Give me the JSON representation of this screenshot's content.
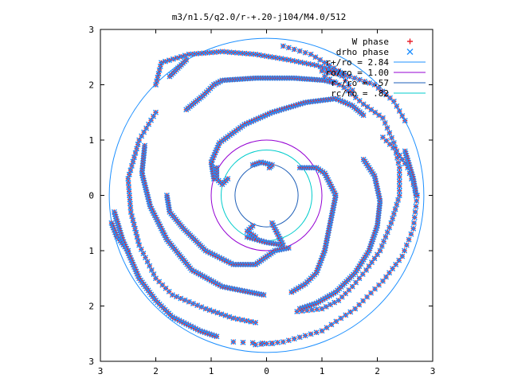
{
  "chart_data": {
    "type": "scatter",
    "title": "m3/n1.5/q2.0/r-+.20-j104/M4.0/512",
    "xlabel": "",
    "ylabel": "",
    "xlim": [
      -3,
      3
    ],
    "ylim": [
      -3,
      3
    ],
    "xticks": [
      {
        "value": -3,
        "label": "3"
      },
      {
        "value": -2,
        "label": "2"
      },
      {
        "value": -1,
        "label": "1"
      },
      {
        "value": 0,
        "label": "0"
      },
      {
        "value": 1,
        "label": "1"
      },
      {
        "value": 2,
        "label": "2"
      },
      {
        "value": 3,
        "label": "3"
      }
    ],
    "yticks": [
      {
        "value": 3,
        "label": "3"
      },
      {
        "value": 2,
        "label": "2"
      },
      {
        "value": 1,
        "label": "1"
      },
      {
        "value": 0,
        "label": "0"
      },
      {
        "value": -1,
        "label": "1"
      },
      {
        "value": -2,
        "label": "2"
      },
      {
        "value": -3,
        "label": "3"
      }
    ],
    "grid": false,
    "legend_position": "top-right",
    "circles": [
      {
        "name": "r+/ro = 2.84",
        "radius": 2.84,
        "color": "#1e90ff"
      },
      {
        "name": "ro/ro = 1.00",
        "radius": 1.0,
        "color": "#9400d3"
      },
      {
        "name": "r-/ro = .57",
        "radius": 0.57,
        "color": "#1e5fb8"
      },
      {
        "name": "rc/ro = .82",
        "radius": 0.82,
        "color": "#00cccc"
      }
    ],
    "series": [
      {
        "name": "W phase",
        "marker": "plus",
        "color": "#e8202a"
      },
      {
        "name": "drho phase",
        "marker": "cross",
        "color": "#1e8fff"
      }
    ],
    "arms": [
      {
        "density": 0.045,
        "points": [
          [
            -0.95,
            0.3
          ],
          [
            -1.0,
            0.6
          ],
          [
            -0.85,
            0.95
          ],
          [
            -0.4,
            1.28
          ],
          [
            0.1,
            1.5
          ],
          [
            0.7,
            1.68
          ],
          [
            1.25,
            1.75
          ],
          [
            1.55,
            1.62
          ],
          [
            1.75,
            1.45
          ]
        ]
      },
      {
        "density": 0.045,
        "points": [
          [
            -0.95,
            2.0
          ],
          [
            -0.8,
            2.08
          ],
          [
            -0.2,
            2.12
          ],
          [
            0.5,
            2.12
          ],
          [
            1.05,
            2.08
          ],
          [
            1.25,
            2.03
          ]
        ]
      },
      {
        "density": 0.045,
        "points": [
          [
            -1.45,
            1.55
          ],
          [
            -1.15,
            1.8
          ],
          [
            -0.95,
            2.0
          ]
        ]
      },
      {
        "density": 0.045,
        "points": [
          [
            -0.35,
            -0.75
          ],
          [
            0.0,
            -0.85
          ],
          [
            0.3,
            -0.9
          ],
          [
            0.1,
            -0.5
          ]
        ]
      },
      {
        "density": 0.045,
        "points": [
          [
            -0.2,
            -0.75
          ],
          [
            -0.35,
            -0.65
          ],
          [
            -0.25,
            -0.55
          ]
        ]
      },
      {
        "density": 0.045,
        "points": [
          [
            0.6,
            0.5
          ],
          [
            0.9,
            0.5
          ],
          [
            1.05,
            0.4
          ],
          [
            1.25,
            0.0
          ],
          [
            1.15,
            -0.5
          ],
          [
            1.05,
            -1.0
          ],
          [
            0.9,
            -1.4
          ],
          [
            0.7,
            -1.6
          ],
          [
            0.45,
            -1.75
          ]
        ]
      },
      {
        "density": 0.045,
        "points": [
          [
            -0.25,
            0.55
          ],
          [
            -0.1,
            0.6
          ],
          [
            0.1,
            0.55
          ],
          [
            0.05,
            0.5
          ]
        ]
      },
      {
        "density": 0.045,
        "points": [
          [
            -0.9,
            0.5
          ],
          [
            -0.9,
            0.3
          ],
          [
            -0.8,
            0.2
          ],
          [
            -0.7,
            0.3
          ]
        ]
      },
      {
        "density": 0.045,
        "points": [
          [
            -1.8,
            0.0
          ],
          [
            -1.75,
            -0.3
          ],
          [
            -1.5,
            -0.6
          ],
          [
            -1.1,
            -1.0
          ],
          [
            -0.6,
            -1.25
          ],
          [
            -0.2,
            -1.25
          ],
          [
            0.15,
            -1.0
          ],
          [
            0.4,
            -0.95
          ]
        ]
      },
      {
        "density": 0.045,
        "points": [
          [
            -2.2,
            0.9
          ],
          [
            -2.25,
            0.4
          ],
          [
            -2.1,
            -0.2
          ],
          [
            -1.8,
            -0.8
          ],
          [
            -1.35,
            -1.35
          ],
          [
            -0.8,
            -1.65
          ],
          [
            -0.3,
            -1.75
          ],
          [
            -0.05,
            -1.8
          ]
        ]
      },
      {
        "density": 0.08,
        "points": [
          [
            -2.0,
            1.5
          ],
          [
            -2.3,
            1.0
          ],
          [
            -2.5,
            0.3
          ],
          [
            -2.45,
            -0.3
          ],
          [
            -2.3,
            -0.9
          ],
          [
            -2.0,
            -1.5
          ],
          [
            -1.7,
            -1.8
          ],
          [
            -1.1,
            -2.05
          ],
          [
            -0.6,
            -2.22
          ],
          [
            -0.2,
            -2.3
          ]
        ]
      },
      {
        "density": 0.045,
        "points": [
          [
            -2.8,
            -0.5
          ],
          [
            -2.7,
            -0.75
          ],
          [
            -2.5,
            -1.0
          ]
        ]
      },
      {
        "density": 0.045,
        "points": [
          [
            -2.75,
            -0.3
          ],
          [
            -2.6,
            -0.8
          ],
          [
            -2.3,
            -1.5
          ],
          [
            -2.0,
            -1.9
          ],
          [
            -1.7,
            -2.2
          ],
          [
            -1.2,
            -2.45
          ],
          [
            -0.9,
            -2.55
          ]
        ]
      },
      {
        "density": 0.07,
        "points": [
          [
            -2.0,
            2.0
          ],
          [
            -1.9,
            2.4
          ],
          [
            -1.4,
            2.55
          ],
          [
            -0.8,
            2.6
          ],
          [
            -0.2,
            2.55
          ],
          [
            0.4,
            2.45
          ],
          [
            0.9,
            2.35
          ],
          [
            1.4,
            2.2
          ]
        ]
      },
      {
        "density": 0.045,
        "points": [
          [
            -1.45,
            2.45
          ],
          [
            -1.6,
            2.3
          ],
          [
            -1.75,
            2.15
          ]
        ]
      },
      {
        "density": 0.09,
        "points": [
          [
            1.05,
            2.15
          ],
          [
            1.4,
            1.95
          ],
          [
            1.75,
            1.65
          ],
          [
            2.1,
            1.4
          ],
          [
            2.3,
            0.95
          ],
          [
            2.4,
            0.5
          ],
          [
            2.4,
            0.0
          ],
          [
            2.25,
            -0.5
          ],
          [
            2.05,
            -1.0
          ],
          [
            1.8,
            -1.35
          ],
          [
            1.55,
            -1.65
          ],
          [
            1.3,
            -1.9
          ],
          [
            1.0,
            -2.05
          ],
          [
            0.55,
            -2.1
          ]
        ]
      },
      {
        "density": 0.045,
        "points": [
          [
            1.75,
            0.65
          ],
          [
            1.95,
            0.35
          ],
          [
            2.05,
            -0.1
          ],
          [
            2.0,
            -0.55
          ],
          [
            1.85,
            -1.0
          ],
          [
            1.6,
            -1.4
          ],
          [
            1.25,
            -1.75
          ],
          [
            0.9,
            -1.95
          ],
          [
            0.6,
            -2.05
          ]
        ]
      },
      {
        "density": 0.1,
        "points": [
          [
            2.1,
            1.05
          ],
          [
            2.35,
            0.8
          ],
          [
            2.55,
            0.5
          ],
          [
            2.72,
            0.0
          ],
          [
            2.65,
            -0.6
          ],
          [
            2.45,
            -1.1
          ],
          [
            2.1,
            -1.55
          ],
          [
            1.6,
            -2.05
          ],
          [
            1.0,
            -2.45
          ],
          [
            0.3,
            -2.65
          ],
          [
            -0.2,
            -2.7
          ]
        ]
      },
      {
        "density": 0.045,
        "points": [
          [
            2.5,
            0.8
          ],
          [
            2.65,
            0.3
          ],
          [
            2.7,
            0.0
          ]
        ]
      },
      {
        "density": 0.09,
        "points": [
          [
            2.5,
            1.35
          ],
          [
            2.3,
            1.7
          ],
          [
            1.95,
            2.0
          ],
          [
            1.5,
            2.15
          ],
          [
            1.0,
            2.25
          ]
        ]
      },
      {
        "density": 0.1,
        "points": [
          [
            0.3,
            2.7
          ],
          [
            0.8,
            2.55
          ],
          [
            1.3,
            2.25
          ],
          [
            1.55,
            1.9
          ]
        ]
      },
      {
        "density": 0.18,
        "points": [
          [
            -0.6,
            -2.65
          ],
          [
            0.1,
            -2.68
          ]
        ]
      }
    ]
  }
}
